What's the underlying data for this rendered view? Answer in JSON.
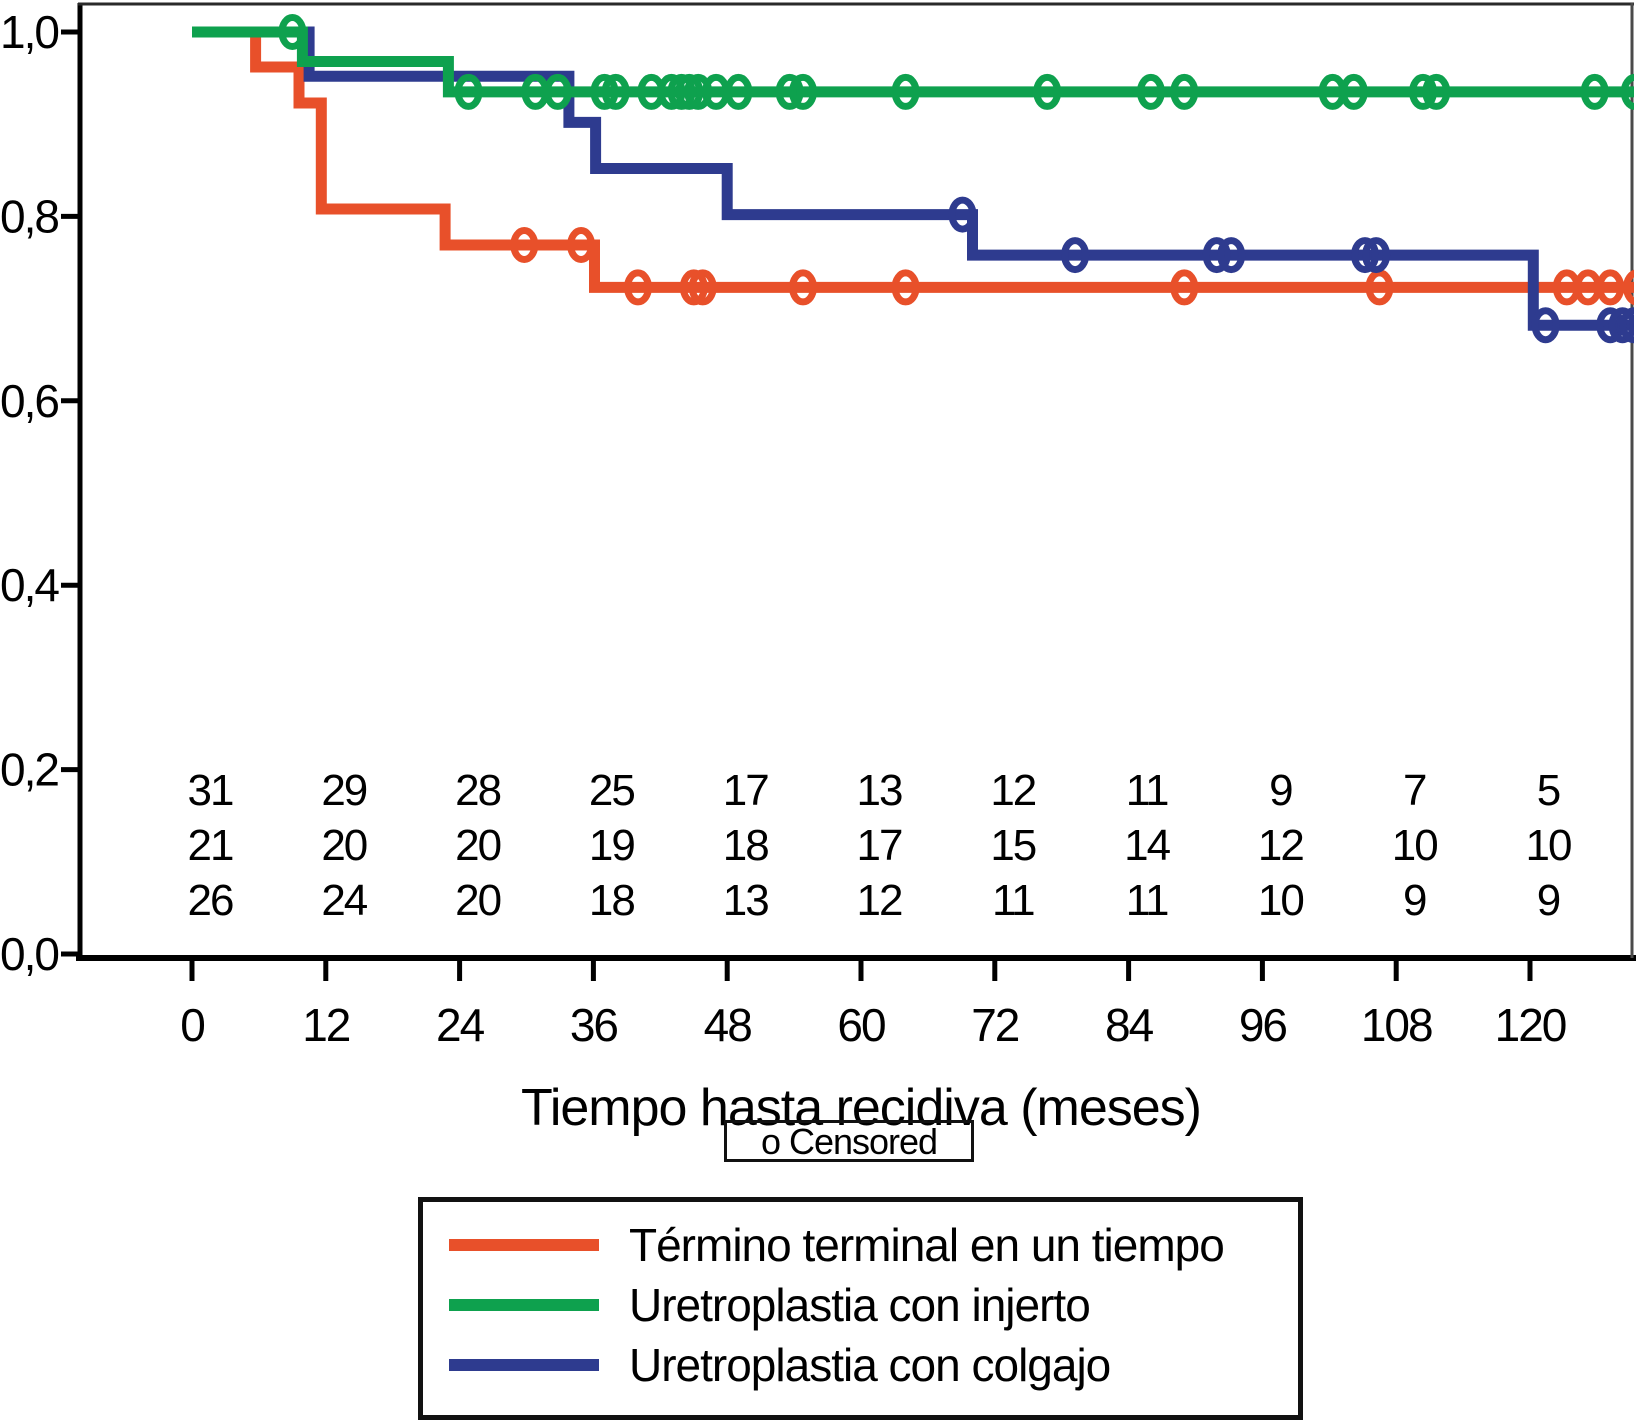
{
  "chart_data": {
    "type": "line",
    "subtype": "kaplan_meier_step_survival",
    "title": "",
    "xlabel": "Tiempo hasta recidiva (meses)",
    "ylabel": "",
    "xlim": [
      -10,
      130
    ],
    "ylim": [
      0.0,
      1.0
    ],
    "grid": false,
    "censored_marker_label": "o Censored",
    "x_axis": {
      "ticks": [
        {
          "value": 0,
          "label": "0"
        },
        {
          "value": 12,
          "label": "12"
        },
        {
          "value": 24,
          "label": "24"
        },
        {
          "value": 36,
          "label": "36"
        },
        {
          "value": 48,
          "label": "48"
        },
        {
          "value": 60,
          "label": "60"
        },
        {
          "value": 72,
          "label": "72"
        },
        {
          "value": 84,
          "label": "84"
        },
        {
          "value": 96,
          "label": "96"
        },
        {
          "value": 108,
          "label": "108"
        },
        {
          "value": 120,
          "label": "120"
        }
      ]
    },
    "y_axis": {
      "ticks": [
        {
          "value": 0.0,
          "label": "0,0"
        },
        {
          "value": 0.2,
          "label": "0,2"
        },
        {
          "value": 0.4,
          "label": "0,4"
        },
        {
          "value": 0.6,
          "label": "0,6"
        },
        {
          "value": 0.8,
          "label": "0,8"
        },
        {
          "value": 1.0,
          "label": "1,0"
        }
      ]
    },
    "series": [
      {
        "id": "termino-terminal-en-un-tiempo",
        "name": "Término terminal en un tiempo",
        "color": "#E8502A",
        "steps": [
          [
            0,
            1.0
          ],
          [
            5.7,
            1.0
          ],
          [
            5.7,
            0.962
          ],
          [
            9.6,
            0.962
          ],
          [
            9.6,
            0.923
          ],
          [
            11.6,
            0.923
          ],
          [
            11.6,
            0.808
          ],
          [
            22.7,
            0.808
          ],
          [
            22.7,
            0.769
          ],
          [
            36.1,
            0.769
          ],
          [
            36.1,
            0.723
          ],
          [
            129.6,
            0.723
          ]
        ],
        "censored": [
          [
            29.8,
            0.769
          ],
          [
            34.9,
            0.769
          ],
          [
            40,
            0.723
          ],
          [
            45,
            0.723
          ],
          [
            45.8,
            0.723
          ],
          [
            54.8,
            0.723
          ],
          [
            64,
            0.723
          ],
          [
            89,
            0.723
          ],
          [
            106.5,
            0.723
          ],
          [
            123.3,
            0.723
          ],
          [
            125.2,
            0.723
          ],
          [
            127.2,
            0.723
          ],
          [
            129.6,
            0.723
          ]
        ]
      },
      {
        "id": "uretroplastia-con-injerto",
        "name": "Uretroplastia con injerto",
        "color": "#0EA14E",
        "steps": [
          [
            0,
            1.0
          ],
          [
            9.9,
            1.0
          ],
          [
            9.9,
            0.968
          ],
          [
            23,
            0.968
          ],
          [
            23,
            0.935
          ],
          [
            129.6,
            0.935
          ]
        ],
        "censored": [
          [
            9,
            1.0
          ],
          [
            24.8,
            0.935
          ],
          [
            30.8,
            0.935
          ],
          [
            32.8,
            0.935
          ],
          [
            37,
            0.935
          ],
          [
            38,
            0.935
          ],
          [
            41.2,
            0.935
          ],
          [
            43,
            0.935
          ],
          [
            43.9,
            0.935
          ],
          [
            44.6,
            0.935
          ],
          [
            45.4,
            0.935
          ],
          [
            47,
            0.935
          ],
          [
            49,
            0.935
          ],
          [
            53.6,
            0.935
          ],
          [
            54.8,
            0.935
          ],
          [
            64,
            0.935
          ],
          [
            76.7,
            0.935
          ],
          [
            86,
            0.935
          ],
          [
            89,
            0.935
          ],
          [
            102.3,
            0.935
          ],
          [
            104.2,
            0.935
          ],
          [
            110.4,
            0.935
          ],
          [
            111.6,
            0.935
          ],
          [
            125.8,
            0.935
          ],
          [
            129.4,
            0.935
          ]
        ]
      },
      {
        "id": "uretroplastia-con-colgajo",
        "name": "Uretroplastia con colgajo",
        "color": "#2E3B8F",
        "steps": [
          [
            0,
            1.0
          ],
          [
            10.5,
            1.0
          ],
          [
            10.5,
            0.952
          ],
          [
            33.8,
            0.952
          ],
          [
            33.8,
            0.902
          ],
          [
            36.2,
            0.902
          ],
          [
            36.2,
            0.852
          ],
          [
            48,
            0.852
          ],
          [
            48,
            0.802
          ],
          [
            70,
            0.802
          ],
          [
            70,
            0.758
          ],
          [
            120.3,
            0.758
          ],
          [
            120.3,
            0.682
          ],
          [
            129.6,
            0.682
          ]
        ],
        "censored": [
          [
            69.1,
            0.802
          ],
          [
            79.2,
            0.758
          ],
          [
            91.9,
            0.758
          ],
          [
            93.2,
            0.758
          ],
          [
            105.2,
            0.758
          ],
          [
            106.2,
            0.758
          ],
          [
            121.4,
            0.682
          ],
          [
            127.2,
            0.682
          ],
          [
            128.3,
            0.682
          ],
          [
            129.3,
            0.682
          ]
        ]
      }
    ],
    "at_risk": {
      "note": "numbers at risk printed above the x-axis at each tick",
      "tick_months": [
        0,
        12,
        24,
        36,
        48,
        60,
        72,
        84,
        96,
        108,
        120
      ],
      "rows": [
        {
          "series_id": "uretroplastia-con-injerto",
          "color": "#0EA14E",
          "values": [
            31,
            29,
            28,
            25,
            17,
            13,
            12,
            11,
            9,
            7,
            5
          ]
        },
        {
          "series_id": "uretroplastia-con-colgajo",
          "color": "#2E3B8F",
          "values": [
            21,
            20,
            20,
            19,
            18,
            17,
            15,
            14,
            12,
            10,
            10
          ]
        },
        {
          "series_id": "termino-terminal-en-un-tiempo",
          "color": "#E8502A",
          "values": [
            26,
            24,
            20,
            18,
            13,
            12,
            11,
            11,
            10,
            9,
            9
          ]
        }
      ]
    },
    "legend": [
      {
        "label": "Término terminal en un tiempo",
        "color": "#E8502A"
      },
      {
        "label": "Uretroplastia con injerto",
        "color": "#0EA14E"
      },
      {
        "label": "Uretroplastia con colgajo",
        "color": "#2E3B8F"
      }
    ],
    "legend_position": "bottom-box"
  }
}
